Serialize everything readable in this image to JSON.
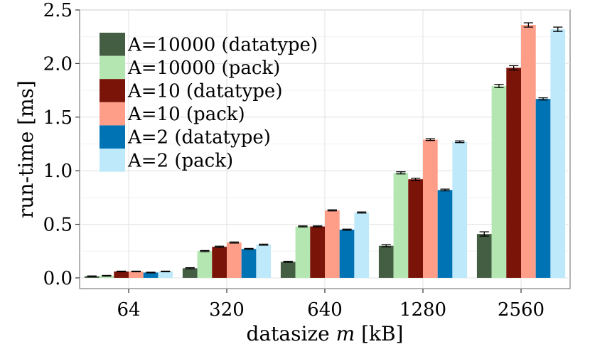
{
  "chart_data": {
    "type": "bar",
    "title": "",
    "xlabel": "datasize m [kB]",
    "xlabel_prefix": "datasize ",
    "xlabel_var": "m",
    "xlabel_suffix": " [kB]",
    "ylabel": "run-time [ms]",
    "ylim": [
      -0.1,
      2.5
    ],
    "yticks": [
      0.0,
      0.5,
      1.0,
      1.5,
      2.0,
      2.5
    ],
    "ytick_labels": [
      "0.0",
      "0.5",
      "1.0",
      "1.5",
      "2.0",
      "2.5"
    ],
    "grid": true,
    "legend_position": "top-left",
    "categories": [
      "64",
      "320",
      "640",
      "1280",
      "2560"
    ],
    "series": [
      {
        "name": "A=10000 (datatype)",
        "color": "#445e44",
        "values": [
          0.015,
          0.09,
          0.15,
          0.3,
          0.41
        ],
        "errors": [
          0.003,
          0.005,
          0.005,
          0.01,
          0.02
        ]
      },
      {
        "name": "A=10000 (pack)",
        "color": "#b3e6b0",
        "values": [
          0.02,
          0.25,
          0.48,
          0.98,
          1.79
        ],
        "errors": [
          0.003,
          0.005,
          0.005,
          0.01,
          0.015
        ]
      },
      {
        "name": "A=10 (datatype)",
        "color": "#7a1308",
        "values": [
          0.06,
          0.29,
          0.48,
          0.92,
          1.96
        ],
        "errors": [
          0.003,
          0.006,
          0.005,
          0.01,
          0.02
        ]
      },
      {
        "name": "A=10 (pack)",
        "color": "#fe9d88",
        "values": [
          0.06,
          0.33,
          0.63,
          1.29,
          2.36
        ],
        "errors": [
          0.003,
          0.005,
          0.005,
          0.008,
          0.02
        ]
      },
      {
        "name": "A=2 (datatype)",
        "color": "#0073b5",
        "values": [
          0.05,
          0.27,
          0.45,
          0.82,
          1.67
        ],
        "errors": [
          0.003,
          0.005,
          0.005,
          0.008,
          0.01
        ]
      },
      {
        "name": "A=2 (pack)",
        "color": "#bde9fb",
        "values": [
          0.06,
          0.31,
          0.61,
          1.27,
          2.32
        ],
        "errors": [
          0.003,
          0.005,
          0.005,
          0.008,
          0.02
        ]
      }
    ]
  }
}
